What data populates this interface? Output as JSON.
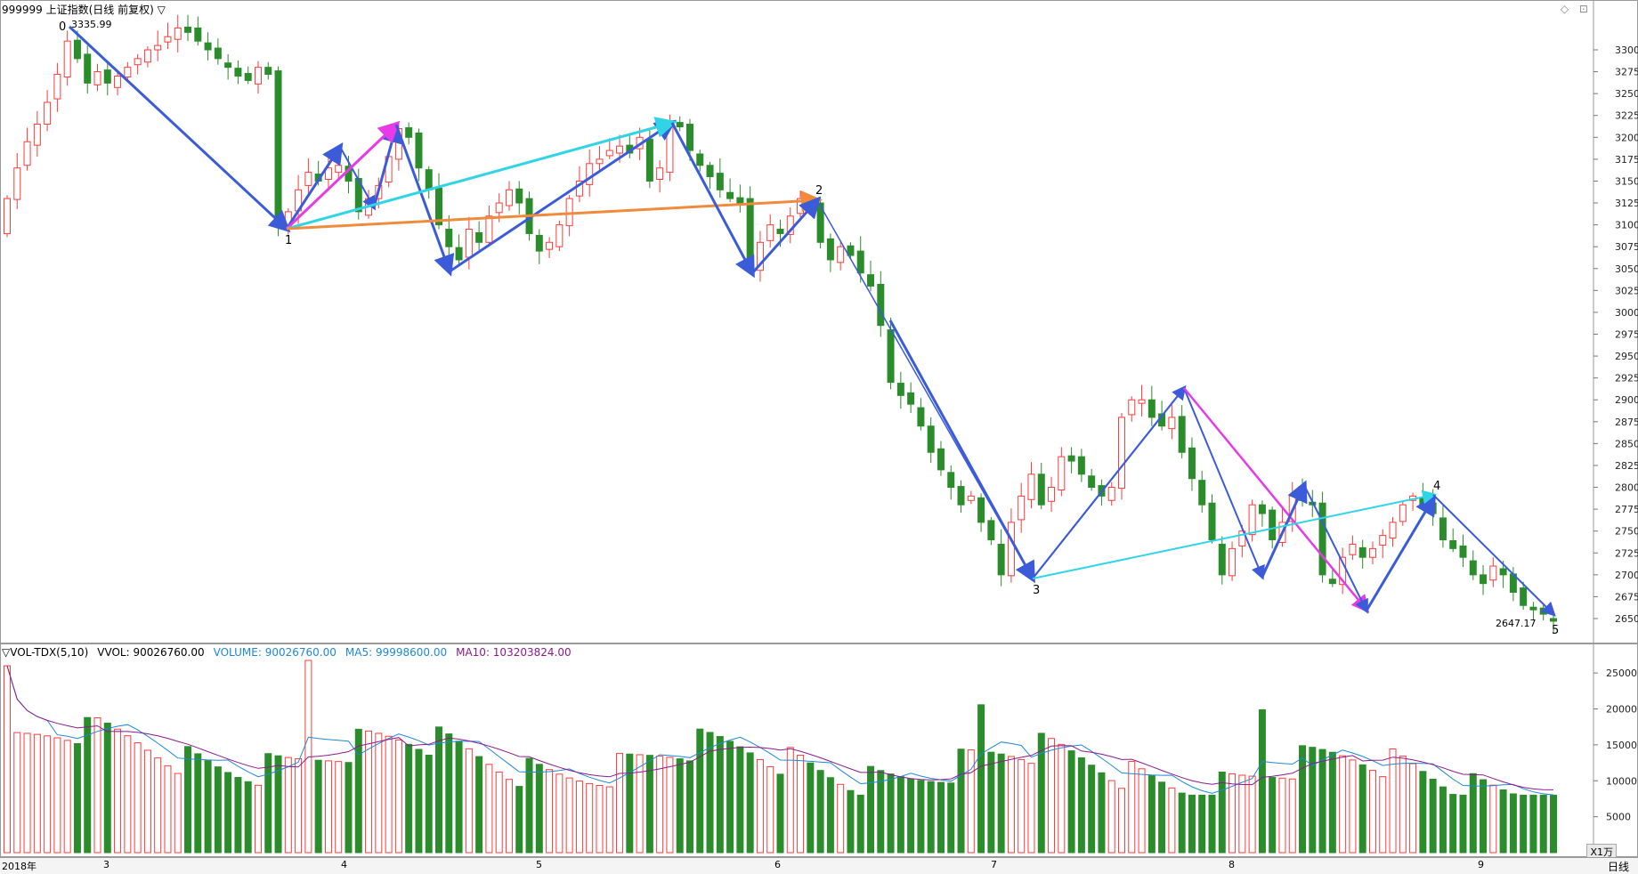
{
  "chart_title": "999999 上证指数(日线 前复权) ▽",
  "high_label": "3335.99",
  "low_label": "2647.17",
  "wave_labels": [
    "0",
    "1",
    "2",
    "3",
    "4",
    "5"
  ],
  "window_icons": "◇ ⊡",
  "price_axis_ticks": [
    3300,
    3275,
    3250,
    3225,
    3200,
    3175,
    3150,
    3125,
    3100,
    3075,
    3050,
    3025,
    3000,
    2975,
    2950,
    2925,
    2900,
    2875,
    2850,
    2825,
    2800,
    2775,
    2750,
    2725,
    2700,
    2675,
    2650
  ],
  "volume_indicator": {
    "name": "▽VOL-TDX(5,10)",
    "vvol": "VVOL: 90026760.00",
    "volume": "VOLUME: 90026760.00",
    "ma5": "MA5: 99998600.00",
    "ma10": "MA10: 103203824.00"
  },
  "volume_axis_ticks": [
    25000,
    20000,
    15000,
    10000,
    5000
  ],
  "volume_unit": "X1万",
  "time_axis": {
    "labels": [
      "2018年",
      "3",
      "4",
      "5",
      "6",
      "7",
      "8",
      "9"
    ],
    "period": "日线"
  },
  "colors": {
    "up": "#ff3b3b",
    "down": "#2b8c2b",
    "wave_line": "#3b5bd9",
    "cyan": "#2fd4e6",
    "magenta": "#e63be6",
    "orange": "#f08a3c",
    "ma5": "#1e88d8",
    "ma10": "#8c1a8c",
    "grid": "#d8d8d8"
  },
  "chart_data": {
    "type": "candlestick",
    "ylim": [
      2630,
      3345
    ],
    "closes": [
      3130,
      3165,
      3195,
      3215,
      3240,
      3272,
      3310,
      3290,
      3262,
      3275,
      3262,
      3270,
      3280,
      3290,
      3300,
      3305,
      3315,
      3325,
      3320,
      3310,
      3300,
      3290,
      3280,
      3270,
      3265,
      3280,
      3272,
      3100,
      3115,
      3140,
      3160,
      3150,
      3165,
      3168,
      3150,
      3115,
      3130,
      3145,
      3178,
      3210,
      3200,
      3165,
      3140,
      3100,
      3075,
      3060,
      3095,
      3080,
      3110,
      3125,
      3140,
      3125,
      3090,
      3070,
      3080,
      3100,
      3130,
      3150,
      3170,
      3175,
      3185,
      3190,
      3182,
      3200,
      3150,
      3165,
      3218,
      3212,
      3185,
      3168,
      3155,
      3140,
      3130,
      3125,
      3050,
      3080,
      3100,
      3090,
      3110,
      3130,
      3125,
      3080,
      3060,
      3075,
      3065,
      3045,
      3030,
      2985,
      2920,
      2905,
      2895,
      2870,
      2840,
      2820,
      2800,
      2780,
      2790,
      2760,
      2740,
      2700,
      2760,
      2790,
      2815,
      2780,
      2800,
      2835,
      2830,
      2815,
      2800,
      2790,
      2800,
      2880,
      2900,
      2900,
      2880,
      2870,
      2880,
      2840,
      2810,
      2780,
      2740,
      2700,
      2730,
      2750,
      2780,
      2770,
      2740,
      2760,
      2790,
      2785,
      2780,
      2700,
      2690,
      2720,
      2735,
      2720,
      2730,
      2745,
      2760,
      2780,
      2790,
      2780,
      2770,
      2740,
      2730,
      2720,
      2700,
      2690,
      2710,
      2700,
      2680,
      2665,
      2660,
      2655,
      2647
    ]
  }
}
